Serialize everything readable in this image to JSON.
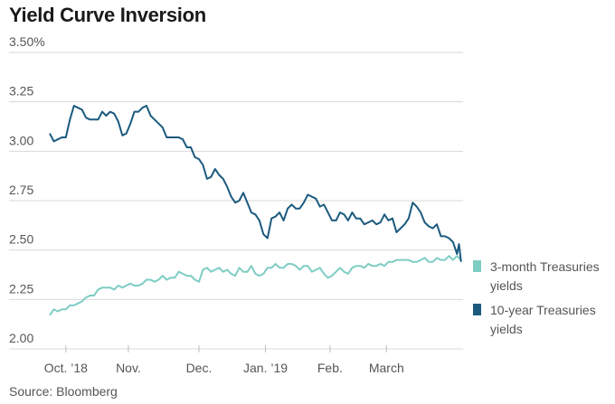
{
  "chart_data": {
    "type": "line",
    "title": "Yield Curve Inversion",
    "source": "Source: Bloomberg",
    "ylim": [
      2.0,
      3.5
    ],
    "xlim": [
      0,
      205
    ],
    "y_ticks": [
      {
        "value": 3.5,
        "label": "3.50%"
      },
      {
        "value": 3.25,
        "label": "3.25"
      },
      {
        "value": 3.0,
        "label": "3.00"
      },
      {
        "value": 2.75,
        "label": "2.75"
      },
      {
        "value": 2.5,
        "label": "2.50"
      },
      {
        "value": 2.25,
        "label": "2.25"
      },
      {
        "value": 2.0,
        "label": "2.00"
      }
    ],
    "x_ticks": [
      {
        "value": 8,
        "label": "Oct. ’18"
      },
      {
        "value": 39,
        "label": "Nov."
      },
      {
        "value": 74,
        "label": "Dec."
      },
      {
        "value": 107,
        "label": "Jan. ’19"
      },
      {
        "value": 139,
        "label": "Feb."
      },
      {
        "value": 167,
        "label": "March"
      }
    ],
    "grid": true,
    "legend_position": "right",
    "series": [
      {
        "name": "3-month Treasuries yields",
        "legend_lines": [
          "3-month Treasuries",
          "yields"
        ],
        "color": "#7ecdc4",
        "x": [
          0,
          2,
          4,
          6,
          8,
          10,
          12,
          14,
          16,
          18,
          20,
          22,
          24,
          26,
          28,
          30,
          32,
          34,
          36,
          38,
          40,
          42,
          44,
          46,
          48,
          50,
          52,
          54,
          56,
          58,
          60,
          62,
          64,
          66,
          68,
          70,
          72,
          74,
          76,
          78,
          80,
          82,
          84,
          86,
          88,
          90,
          92,
          94,
          96,
          98,
          100,
          102,
          104,
          106,
          108,
          110,
          112,
          114,
          116,
          118,
          120,
          122,
          124,
          126,
          128,
          130,
          132,
          134,
          136,
          138,
          140,
          142,
          144,
          146,
          148,
          150,
          152,
          154,
          156,
          158,
          160,
          162,
          164,
          166,
          168,
          170,
          172,
          174,
          176,
          178,
          180,
          182,
          184,
          186,
          188,
          190,
          192,
          194,
          196,
          198,
          200,
          202,
          204
        ],
        "values": [
          2.17,
          2.2,
          2.19,
          2.2,
          2.2,
          2.22,
          2.22,
          2.23,
          2.24,
          2.26,
          2.27,
          2.27,
          2.3,
          2.31,
          2.31,
          2.31,
          2.3,
          2.32,
          2.31,
          2.32,
          2.33,
          2.32,
          2.32,
          2.33,
          2.35,
          2.35,
          2.34,
          2.35,
          2.37,
          2.35,
          2.36,
          2.36,
          2.39,
          2.38,
          2.37,
          2.37,
          2.35,
          2.34,
          2.4,
          2.41,
          2.39,
          2.4,
          2.41,
          2.39,
          2.4,
          2.38,
          2.37,
          2.41,
          2.39,
          2.39,
          2.42,
          2.38,
          2.37,
          2.38,
          2.41,
          2.41,
          2.43,
          2.41,
          2.41,
          2.43,
          2.43,
          2.42,
          2.4,
          2.42,
          2.42,
          2.39,
          2.4,
          2.41,
          2.38,
          2.36,
          2.37,
          2.39,
          2.41,
          2.39,
          2.38,
          2.41,
          2.42,
          2.42,
          2.41,
          2.43,
          2.42,
          2.42,
          2.43,
          2.42,
          2.44,
          2.44,
          2.45,
          2.45,
          2.45,
          2.45,
          2.44,
          2.44,
          2.45,
          2.46,
          2.44,
          2.44,
          2.46,
          2.45,
          2.45,
          2.47,
          2.45,
          2.47,
          2.45
        ]
      },
      {
        "name": "10-year Treasuries yields",
        "legend_lines": [
          "10-year Treasuries",
          "yields"
        ],
        "color": "#1b5a7e",
        "x": [
          0,
          2,
          4,
          6,
          8,
          10,
          12,
          14,
          16,
          18,
          20,
          22,
          24,
          26,
          28,
          30,
          32,
          34,
          36,
          38,
          40,
          42,
          44,
          46,
          48,
          50,
          52,
          54,
          56,
          58,
          60,
          62,
          64,
          66,
          68,
          70,
          72,
          74,
          76,
          78,
          80,
          82,
          84,
          86,
          88,
          90,
          92,
          94,
          96,
          98,
          100,
          102,
          104,
          106,
          108,
          110,
          112,
          114,
          116,
          118,
          120,
          122,
          124,
          126,
          128,
          130,
          132,
          134,
          136,
          138,
          140,
          142,
          144,
          146,
          148,
          150,
          152,
          154,
          156,
          158,
          160,
          162,
          164,
          166,
          168,
          170,
          172,
          174,
          176,
          178,
          180,
          182,
          184,
          186,
          188,
          190,
          192,
          194,
          196,
          198,
          200,
          202,
          203,
          204
        ],
        "values": [
          3.09,
          3.05,
          3.06,
          3.07,
          3.07,
          3.16,
          3.23,
          3.22,
          3.21,
          3.17,
          3.16,
          3.16,
          3.16,
          3.2,
          3.18,
          3.2,
          3.19,
          3.15,
          3.08,
          3.09,
          3.14,
          3.2,
          3.2,
          3.22,
          3.23,
          3.18,
          3.16,
          3.14,
          3.12,
          3.07,
          3.07,
          3.07,
          3.07,
          3.06,
          3.02,
          3.02,
          2.97,
          2.96,
          2.93,
          2.86,
          2.87,
          2.91,
          2.88,
          2.86,
          2.82,
          2.77,
          2.74,
          2.75,
          2.79,
          2.74,
          2.69,
          2.68,
          2.65,
          2.58,
          2.56,
          2.66,
          2.67,
          2.69,
          2.65,
          2.71,
          2.73,
          2.71,
          2.71,
          2.74,
          2.78,
          2.77,
          2.76,
          2.72,
          2.73,
          2.69,
          2.65,
          2.65,
          2.69,
          2.68,
          2.65,
          2.69,
          2.66,
          2.66,
          2.63,
          2.64,
          2.65,
          2.63,
          2.64,
          2.68,
          2.65,
          2.66,
          2.59,
          2.61,
          2.63,
          2.66,
          2.74,
          2.72,
          2.69,
          2.64,
          2.62,
          2.61,
          2.63,
          2.57,
          2.57,
          2.56,
          2.54,
          2.48,
          2.53,
          2.44
        ]
      }
    ]
  }
}
